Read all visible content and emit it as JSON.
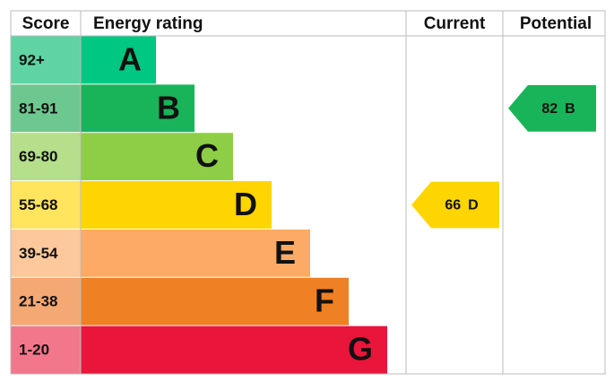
{
  "header": {
    "score": "Score",
    "rating": "Energy rating",
    "current": "Current",
    "potential": "Potential"
  },
  "bands": [
    {
      "range": "92+",
      "letter": "A",
      "color": "#00c781",
      "cell_color": "#5fd3a2"
    },
    {
      "range": "81-91",
      "letter": "B",
      "color": "#19b459",
      "cell_color": "#6dc88f"
    },
    {
      "range": "69-80",
      "letter": "C",
      "color": "#8dce46",
      "cell_color": "#b5df8a"
    },
    {
      "range": "55-68",
      "letter": "D",
      "color": "#ffd500",
      "cell_color": "#ffe45e"
    },
    {
      "range": "39-54",
      "letter": "E",
      "color": "#fcaa65",
      "cell_color": "#fdc89c"
    },
    {
      "range": "21-38",
      "letter": "F",
      "color": "#ef8023",
      "cell_color": "#f4a873"
    },
    {
      "range": "1-20",
      "letter": "G",
      "color": "#e9153b",
      "cell_color": "#f2778b"
    }
  ],
  "current": {
    "score": 66,
    "band": "D"
  },
  "potential": {
    "score": 82,
    "band": "B"
  }
}
